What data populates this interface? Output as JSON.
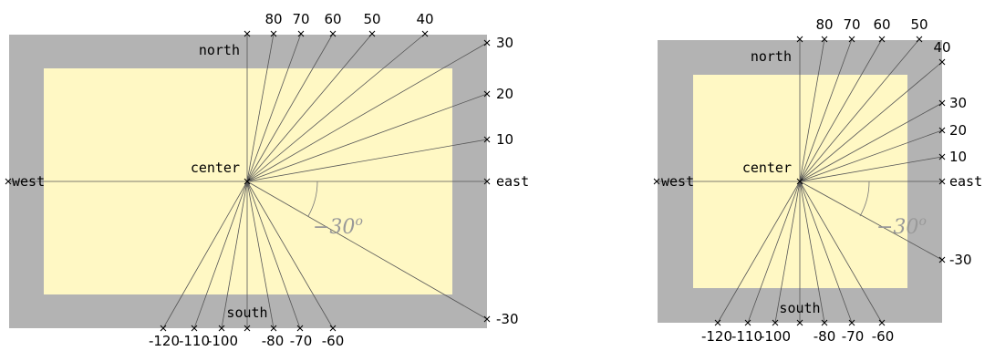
{
  "colors": {
    "outer_fill": "#b3b3b3",
    "inner_fill": "#fff8c4",
    "ray": "#555555",
    "marker": "#000000",
    "angle": "#999999"
  },
  "labels": {
    "north": "north",
    "south": "south",
    "east": "east",
    "west": "west",
    "center": "center",
    "angle": "−30"
  },
  "left_figure": {
    "angle_labels": {
      "a80": "80",
      "a70": "70",
      "a60": "60",
      "a50": "50",
      "a40": "40",
      "a30": "30",
      "a20": "20",
      "a10": "10",
      "am30": "-30",
      "am60": "-60",
      "am70": "-70",
      "am80": "-80",
      "am100": "-100",
      "am110": "-110",
      "am120": "-120"
    }
  },
  "right_figure": {
    "angle_labels": {
      "a80": "80",
      "a70": "70",
      "a60": "60",
      "a50": "50",
      "a40": "40",
      "a30": "30",
      "a20": "20",
      "a10": "10",
      "am30": "-30",
      "am60": "-60",
      "am70": "-70",
      "am80": "-80",
      "am100": "-100",
      "am110": "-110",
      "am120": "-120"
    }
  }
}
